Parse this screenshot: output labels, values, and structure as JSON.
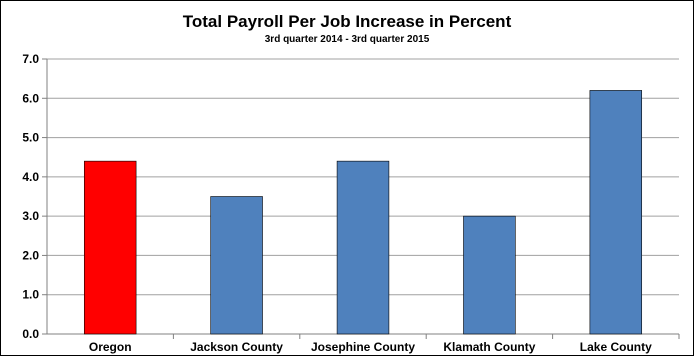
{
  "chart_data": {
    "type": "bar",
    "title": "Total Payroll Per Job Increase in Percent",
    "subtitle": "3rd quarter 2014 - 3rd quarter 2015",
    "xlabel": "",
    "ylabel": "",
    "categories": [
      "Oregon",
      "Jackson County",
      "Josephine County",
      "Klamath County",
      "Lake County"
    ],
    "values": [
      4.4,
      3.5,
      4.4,
      3.0,
      6.2
    ],
    "ylim": [
      0,
      7
    ],
    "yticks": [
      "0.0",
      "1.0",
      "2.0",
      "3.0",
      "4.0",
      "5.0",
      "6.0",
      "7.0"
    ],
    "grid": true,
    "legend": "none",
    "bar_colors": [
      "#ff0000",
      "#4f81bd",
      "#4f81bd",
      "#4f81bd",
      "#4f81bd"
    ],
    "gridline_color": "#a0a0a0",
    "axis_color": "#808080"
  }
}
